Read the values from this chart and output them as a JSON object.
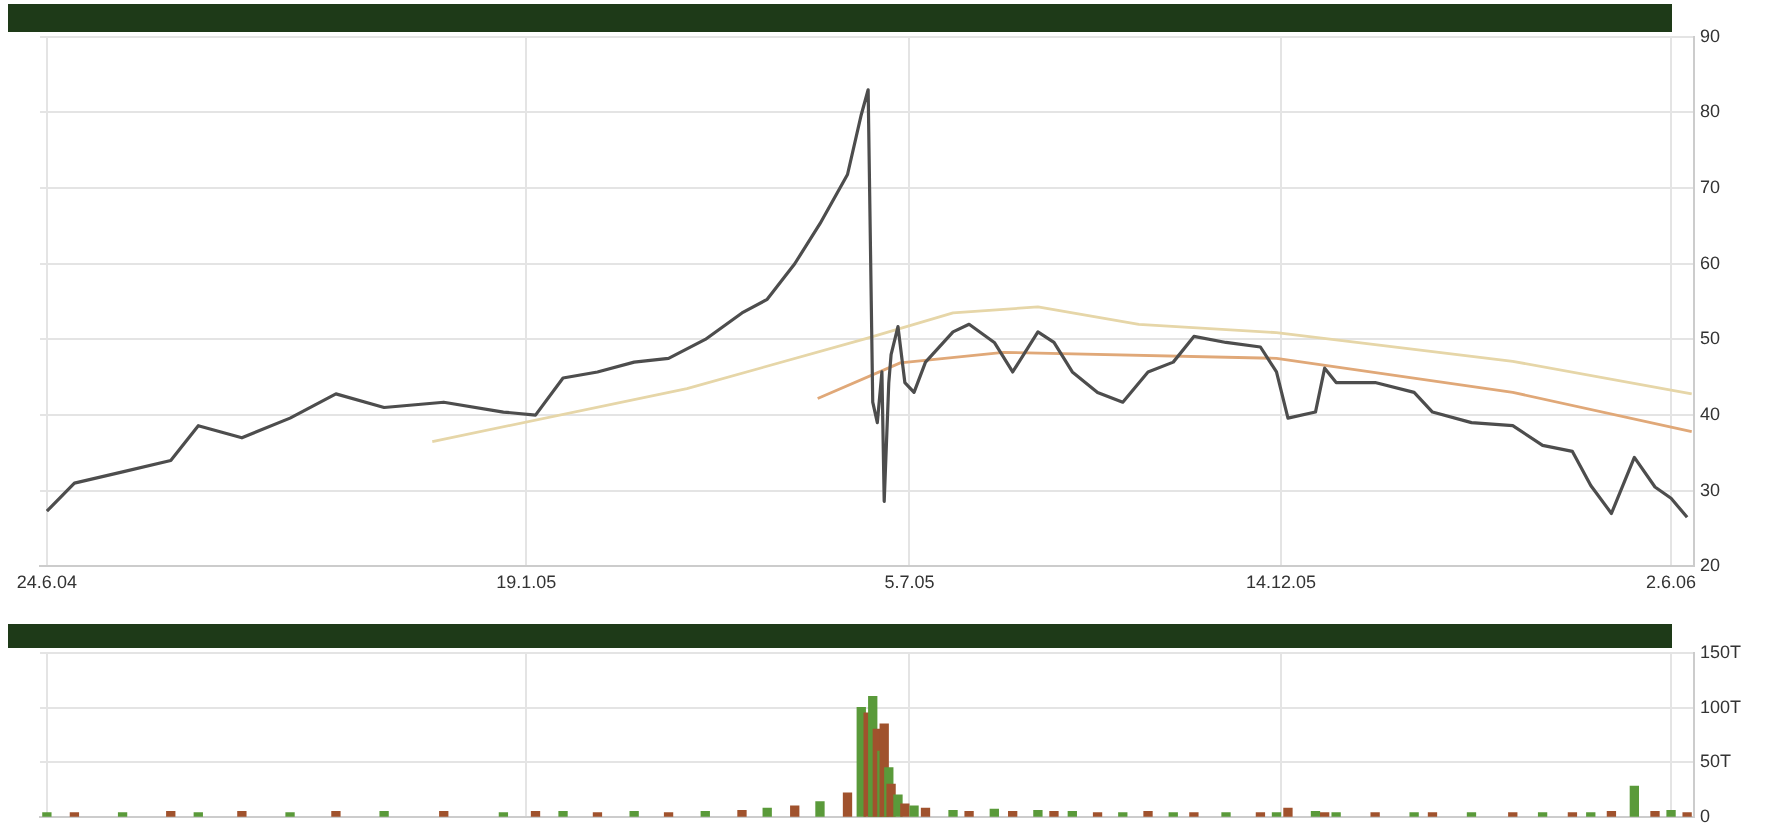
{
  "chart_data": [
    {
      "type": "line",
      "marker": "none",
      "grid": true,
      "x": [
        "2004-06-24",
        "2004-07-06",
        "2004-07-27",
        "2004-08-17",
        "2004-08-29",
        "2004-09-17",
        "2004-10-08",
        "2004-10-28",
        "2004-11-18",
        "2004-12-14",
        "2005-01-09",
        "2005-01-23",
        "2005-02-04",
        "2005-02-19",
        "2005-03-07",
        "2005-03-22",
        "2005-04-07",
        "2005-04-23",
        "2005-05-04",
        "2005-05-16",
        "2005-05-27",
        "2005-06-08",
        "2005-06-14",
        "2005-06-17",
        "2005-06-19",
        "2005-06-21",
        "2005-06-23",
        "2005-06-24",
        "2005-06-26",
        "2005-06-27",
        "2005-06-30",
        "2005-07-03",
        "2005-07-07",
        "2005-07-12",
        "2005-07-24",
        "2005-07-31",
        "2005-08-11",
        "2005-08-19",
        "2005-08-30",
        "2005-09-06",
        "2005-09-14",
        "2005-09-25",
        "2005-10-06",
        "2005-10-17",
        "2005-10-28",
        "2005-11-06",
        "2005-11-20",
        "2005-12-05",
        "2005-12-12",
        "2005-12-17",
        "2005-12-29",
        "2006-01-02",
        "2006-01-07",
        "2006-01-24",
        "2006-02-10",
        "2006-02-18",
        "2006-03-07",
        "2006-03-25",
        "2006-04-07",
        "2006-04-20",
        "2006-04-28",
        "2006-05-07",
        "2006-05-17",
        "2006-05-26",
        "2006-06-02",
        "2006-06-09"
      ],
      "series": [
        {
          "color": "#4d4d4d",
          "values": [
            27.3,
            31,
            32.5,
            34,
            38.6,
            37,
            39.6,
            42.8,
            41,
            41.7,
            40.4,
            40,
            44.9,
            45.7,
            47,
            47.5,
            50,
            53.5,
            55.3,
            60,
            65.3,
            71.8,
            79.7,
            83,
            41.7,
            39,
            45.7,
            28.6,
            44.3,
            48,
            51.7,
            44.3,
            43,
            47,
            51,
            52,
            49.6,
            45.7,
            51,
            49.6,
            45.7,
            43,
            41.7,
            45.7,
            47,
            50.4,
            49.6,
            49,
            45.7,
            39.6,
            40.4,
            46.2,
            44.3,
            44.3,
            43,
            40.4,
            39,
            38.6,
            36,
            35.2,
            30.7,
            27,
            34.4,
            30.5,
            29,
            26.5
          ]
        },
        {
          "color": "#e6d6a8",
          "x": [
            "2004-12-09",
            "2005-03-30",
            "2005-06-16",
            "2005-07-24",
            "2005-08-30",
            "2005-10-13",
            "2005-12-12",
            "2006-03-25",
            "2006-06-11"
          ],
          "values": [
            36.5,
            43.5,
            50.1,
            53.5,
            54.3,
            52,
            50.9,
            47.1,
            42.8
          ]
        },
        {
          "color": "#e0a878",
          "x": [
            "2005-05-26",
            "2005-07-01",
            "2005-08-15",
            "2005-12-12",
            "2006-03-25",
            "2006-06-11"
          ],
          "values": [
            42.2,
            46.9,
            48.3,
            47.5,
            43,
            37.8
          ]
        }
      ],
      "xlim": [
        "2004-06-21",
        "2006-06-12"
      ],
      "xticks": [
        {
          "value": "2004-06-24",
          "label": "24.6.04"
        },
        {
          "value": "2005-01-19",
          "label": "19.1.05"
        },
        {
          "value": "2005-07-05",
          "label": "5.7.05"
        },
        {
          "value": "2005-12-14",
          "label": "14.12.05"
        },
        {
          "value": "2006-06-02",
          "label": "2.6.06"
        }
      ],
      "ylim": [
        20,
        90
      ],
      "yticks": [
        20,
        30,
        40,
        50,
        60,
        70,
        80,
        90
      ]
    },
    {
      "type": "bar",
      "grid": true,
      "tick_labels": "y",
      "x": [
        "2004-06-24",
        "2004-07-06",
        "2004-07-27",
        "2004-08-17",
        "2004-08-29",
        "2004-09-17",
        "2004-10-08",
        "2004-10-28",
        "2004-11-18",
        "2004-12-14",
        "2005-01-09",
        "2005-01-23",
        "2005-02-04",
        "2005-02-19",
        "2005-03-07",
        "2005-03-22",
        "2005-04-07",
        "2005-04-23",
        "2005-05-04",
        "2005-05-16",
        "2005-05-27",
        "2005-06-08",
        "2005-06-14",
        "2005-06-17",
        "2005-06-19",
        "2005-06-21",
        "2005-06-23",
        "2005-06-24",
        "2005-06-26",
        "2005-06-27",
        "2005-06-30",
        "2005-07-03",
        "2005-07-07",
        "2005-07-12",
        "2005-07-24",
        "2005-07-31",
        "2005-08-11",
        "2005-08-19",
        "2005-08-30",
        "2005-09-06",
        "2005-09-14",
        "2005-09-25",
        "2005-10-06",
        "2005-10-17",
        "2005-10-28",
        "2005-11-06",
        "2005-11-20",
        "2005-12-05",
        "2005-12-12",
        "2005-12-17",
        "2005-12-29",
        "2006-01-02",
        "2006-01-07",
        "2006-01-24",
        "2006-02-10",
        "2006-02-18",
        "2006-03-07",
        "2006-03-25",
        "2006-04-07",
        "2006-04-20",
        "2006-04-28",
        "2006-05-07",
        "2006-05-17",
        "2006-05-26",
        "2006-06-02",
        "2006-06-09"
      ],
      "values": [
        4,
        4,
        4,
        5,
        4,
        5,
        4,
        5,
        5,
        5,
        4,
        5,
        5,
        4,
        5,
        4,
        5,
        6,
        8,
        10,
        14,
        22,
        100,
        95,
        110,
        80,
        60,
        85,
        45,
        30,
        20,
        12,
        10,
        8,
        6,
        5,
        7,
        5,
        6,
        5,
        5,
        4,
        4,
        5,
        4,
        4,
        4,
        4,
        4,
        8,
        5,
        4,
        4,
        4,
        4,
        4,
        4,
        4,
        4,
        4,
        4,
        5,
        28,
        5,
        6,
        4
      ],
      "colors": [
        "#5a9a3a",
        "#a0522d",
        "#5a9a3a",
        "#a0522d",
        "#5a9a3a",
        "#a0522d",
        "#5a9a3a",
        "#a0522d",
        "#5a9a3a",
        "#a0522d",
        "#5a9a3a",
        "#a0522d",
        "#5a9a3a",
        "#a0522d",
        "#5a9a3a",
        "#a0522d",
        "#5a9a3a",
        "#a0522d",
        "#5a9a3a",
        "#a0522d",
        "#5a9a3a",
        "#a0522d",
        "#5a9a3a",
        "#a0522d",
        "#5a9a3a",
        "#a0522d",
        "#5a9a3a",
        "#a0522d",
        "#5a9a3a",
        "#a0522d",
        "#5a9a3a",
        "#a0522d",
        "#5a9a3a",
        "#a0522d",
        "#5a9a3a",
        "#a0522d",
        "#5a9a3a",
        "#a0522d",
        "#5a9a3a",
        "#a0522d",
        "#5a9a3a",
        "#a0522d",
        "#5a9a3a",
        "#a0522d",
        "#5a9a3a",
        "#a0522d",
        "#5a9a3a",
        "#a0522d",
        "#5a9a3a",
        "#a0522d",
        "#5a9a3a",
        "#a0522d",
        "#5a9a3a",
        "#a0522d",
        "#5a9a3a",
        "#a0522d",
        "#5a9a3a",
        "#a0522d",
        "#5a9a3a",
        "#a0522d",
        "#5a9a3a",
        "#a0522d",
        "#5a9a3a",
        "#a0522d",
        "#5a9a3a",
        "#a0522d"
      ],
      "xlim": [
        "2004-06-21",
        "2006-06-12"
      ],
      "xticks": [
        {
          "value": "2004-06-24",
          "label": null
        },
        {
          "value": "2005-01-19",
          "label": null
        },
        {
          "value": "2005-07-05",
          "label": null
        },
        {
          "value": "2005-12-14",
          "label": null
        },
        {
          "value": "2006-06-02",
          "label": null
        }
      ],
      "ylim": [
        0,
        150
      ],
      "yticks": [
        0,
        {
          "value": 50,
          "label": "50T"
        },
        {
          "value": 100,
          "label": "100T"
        },
        {
          "value": 150,
          "label": "150T"
        }
      ]
    }
  ]
}
